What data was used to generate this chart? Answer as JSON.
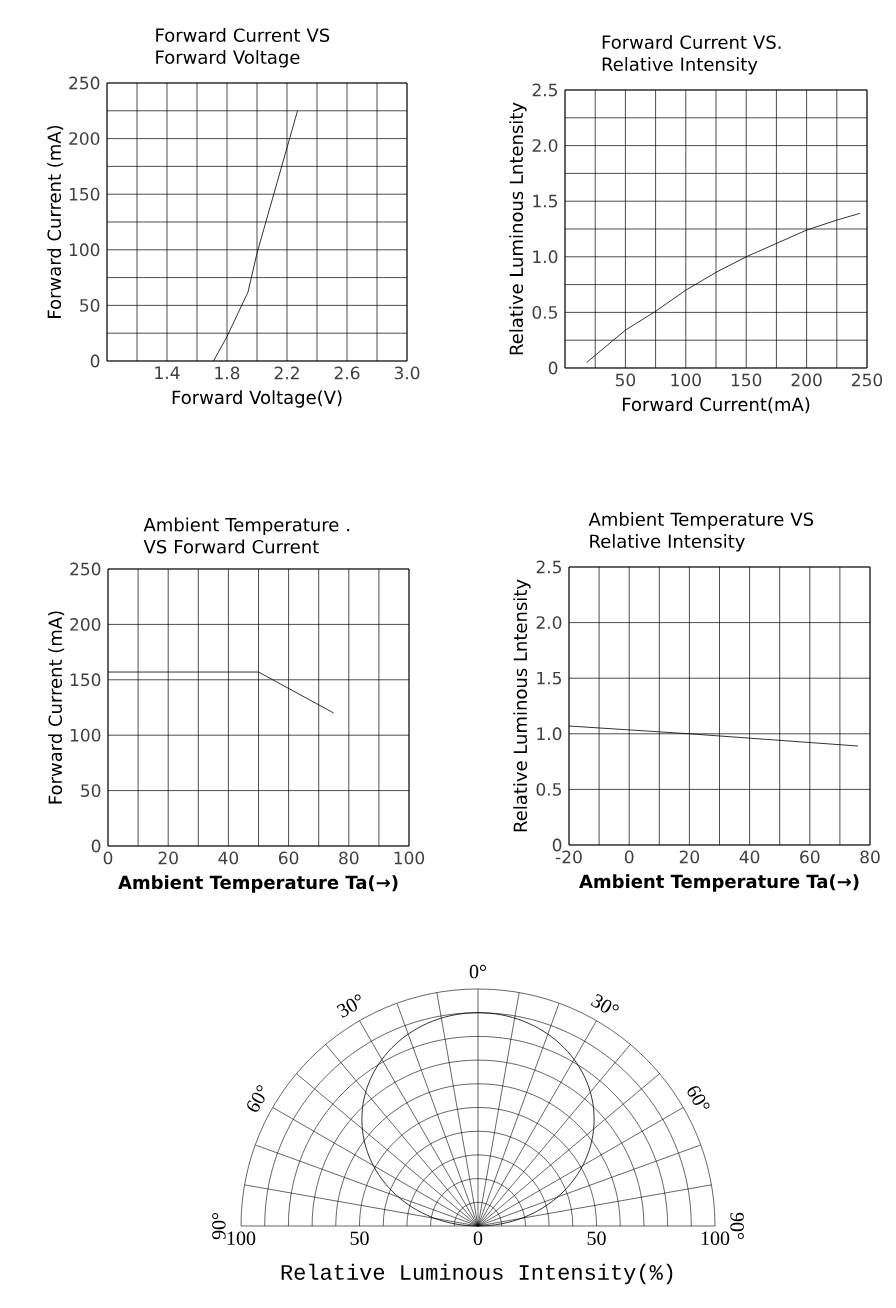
{
  "chart_data": [
    {
      "type": "line",
      "title": "Forward Current VS Forward Voltage",
      "xlabel": "Forward Voltage(V)",
      "ylabel": "Forward Current (mA)",
      "color": "#000000",
      "x": [
        1.71,
        1.8,
        1.94,
        2.0,
        2.27
      ],
      "values": [
        0,
        22,
        62,
        97,
        225
      ],
      "xlim": [
        1.0,
        3.0
      ],
      "ylim": [
        0,
        250
      ],
      "xticks": [
        {
          "value": 1.0,
          "label": null
        },
        {
          "value": 1.2,
          "label": null
        },
        1.4,
        {
          "value": 1.6,
          "label": null
        },
        1.8,
        {
          "value": 2.0,
          "label": null
        },
        2.2,
        {
          "value": 2.4,
          "label": null
        },
        2.6,
        {
          "value": 2.8,
          "label": null
        },
        {
          "value": 3.0,
          "label": "3.0"
        }
      ],
      "yticks": [
        0,
        {
          "value": 25,
          "label": null
        },
        50,
        {
          "value": 75,
          "label": null
        },
        100,
        {
          "value": 125,
          "label": null
        },
        150,
        {
          "value": 175,
          "label": null
        },
        200,
        {
          "value": 225,
          "label": null
        },
        250
      ],
      "grid": true
    },
    {
      "type": "line",
      "title": "Forward Current VS. Relative Intensity",
      "xlabel": "Forward Current(mA)",
      "ylabel": "Relative Luminous Lntensity",
      "color": "#000000",
      "x": [
        18,
        50,
        75,
        100,
        125,
        150,
        175,
        200,
        225,
        244
      ],
      "values": [
        0.05,
        0.34,
        0.51,
        0.7,
        0.86,
        1.0,
        1.12,
        1.24,
        1.33,
        1.39
      ],
      "xlim": [
        0,
        250
      ],
      "ylim": [
        0,
        2.5
      ],
      "xticks": [
        {
          "value": 0,
          "label": null
        },
        {
          "value": 25,
          "label": null
        },
        50,
        {
          "value": 75,
          "label": null
        },
        100,
        {
          "value": 125,
          "label": null
        },
        150,
        {
          "value": 175,
          "label": null
        },
        200,
        {
          "value": 225,
          "label": null
        },
        250
      ],
      "yticks": [
        0,
        {
          "value": 0.25,
          "label": null
        },
        0.5,
        {
          "value": 0.75,
          "label": null
        },
        {
          "value": 1.0,
          "label": "1.0"
        },
        {
          "value": 1.25,
          "label": null
        },
        1.5,
        {
          "value": 1.75,
          "label": null
        },
        {
          "value": 2.0,
          "label": "2.0"
        },
        {
          "value": 2.25,
          "label": null
        },
        2.5
      ],
      "grid": true
    },
    {
      "type": "line",
      "title": "Ambient Temperature . VS Forward Current",
      "xlabel": "Ambient Temperature Ta(→)",
      "ylabel": "Forward Current (mA)",
      "color": "#000000",
      "x": [
        0,
        50,
        75
      ],
      "values": [
        157,
        157,
        120
      ],
      "xlim": [
        0,
        100
      ],
      "ylim": [
        0,
        250
      ],
      "xticks": [
        0,
        {
          "value": 10,
          "label": null
        },
        20,
        {
          "value": 30,
          "label": null
        },
        40,
        {
          "value": 50,
          "label": null
        },
        60,
        {
          "value": 70,
          "label": null
        },
        80,
        {
          "value": 90,
          "label": null
        },
        100
      ],
      "yticks": [
        0,
        50,
        100,
        150,
        200,
        250
      ],
      "grid": true
    },
    {
      "type": "line",
      "title": "Ambient Temperature VS Relative Intensity",
      "xlabel": "Ambient Temperature Ta(→)",
      "ylabel": "Relative Luminous Lntensity",
      "color": "#000000",
      "x": [
        -20,
        20,
        76
      ],
      "values": [
        1.07,
        1.0,
        0.89
      ],
      "xlim": [
        -20,
        80
      ],
      "ylim": [
        0,
        2.5
      ],
      "xticks": [
        -20,
        {
          "value": -10,
          "label": null
        },
        0,
        {
          "value": 10,
          "label": null
        },
        20,
        {
          "value": 30,
          "label": null
        },
        40,
        {
          "value": 50,
          "label": null
        },
        60,
        {
          "value": 70,
          "label": null
        },
        80
      ],
      "yticks": [
        0,
        0.5,
        {
          "value": 1.0,
          "label": "1.0"
        },
        1.5,
        {
          "value": 2.0,
          "label": "2.0"
        },
        2.5
      ],
      "grid": true
    },
    {
      "type": "other",
      "xlabel": "Relative Luminous Intensity(%)",
      "annotations": [
        "90°",
        "60°",
        "30°",
        "0°",
        "30°",
        "60°",
        "90°",
        "100",
        "50",
        "0",
        "50",
        "100"
      ]
    }
  ]
}
